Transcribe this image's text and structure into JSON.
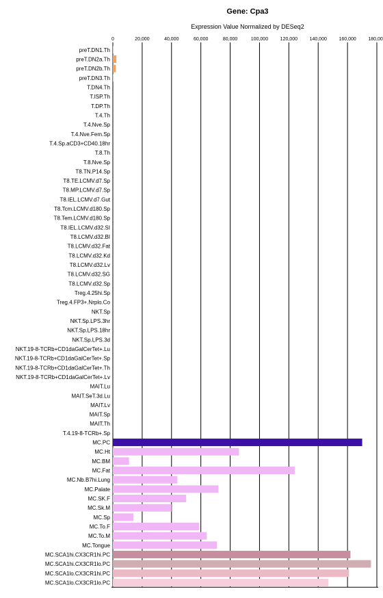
{
  "chart_data": {
    "type": "bar",
    "orientation": "horizontal",
    "title": "Gene: Cpa3",
    "subtitle": "Expression Value Normalized by DESeq2",
    "xlabel": "",
    "ylabel": "",
    "xlim": [
      0,
      180000
    ],
    "xticks": [
      0,
      20000,
      40000,
      60000,
      80000,
      100000,
      120000,
      140000,
      160000,
      180000
    ],
    "xtick_labels": [
      "0",
      "20,000",
      "40,000",
      "60,000",
      "80,000",
      "100,000",
      "120,000",
      "140,000",
      "160,000",
      "180,000"
    ],
    "grid": "vertical",
    "categories": [
      "preT.DN1.Th",
      "preT.DN2a.Th",
      "preT.DN2b.Th",
      "preT.DN3.Th",
      "T.DN4.Th",
      "T.ISP.Th",
      "T.DP.Th",
      "T.4.Th",
      "T.4.Nve.Sp",
      "T.4.Nve.Fem.Sp",
      "T.4.Sp.aCD3+CD40.18hr",
      "T.8.Th",
      "T.8.Nve.Sp",
      "T8.TN.P14.Sp",
      "T8.TE.LCMV.d7.Sp",
      "T8.MP.LCMV.d7.Sp",
      "T8.IEL.LCMV.d7.Gut",
      "T8.Tcm.LCMV.d180.Sp",
      "T8.Tem.LCMV.d180.Sp",
      "T8.IEL.LCMV.d32.SI",
      "T8.LCMV.d32.BI",
      "T8.LCMV.d32.Fat",
      "T8.LCMV.d32.Kd",
      "T8.LCMV.d32.Lv",
      "T8.LCMV.d32.SG",
      "T8.LCMV.d32.Sp",
      "Treg.4.25hi.Sp",
      "Treg.4.FP3+.Nrplo.Co",
      "NKT.Sp",
      "NKT.Sp.LPS.3hr",
      "NKT.Sp.LPS.18hr",
      "NKT.Sp.LPS.3d",
      "NKT.19-8-TCRb+CD1daGalCerTet+.Lu",
      "NKT.19-8-TCRb+CD1daGalCerTet+.Sp",
      "NKT.19-8-TCRb+CD1daGalCerTet+.Th",
      "NKT.19-8-TCRb+CD1daGalCerTet+.Lv",
      "MAIT.Lu",
      "MAIT.SeT.3d.Lu",
      "MAIT.Lv",
      "MAIT.Sp",
      "MAIT.Th",
      "T.4.19-8-TCRb+.Sp",
      "MC.PC",
      "MC.Ht",
      "MC.BM",
      "MC.Fat",
      "MC.Nb.B7hi.Lung",
      "MC.Palate",
      "MC.SK.F",
      "MC.Sk.M",
      "MC.Sp",
      "MC.To.F",
      "MC.To.M",
      "MC.Tongue",
      "MC.SCA1hi.CX3CR1hi.PC",
      "MC.SCA1hi.CX3CR1lo.PC",
      "MC.SCA1lo.CX3CR1hi.PC",
      "MC.SCA1lo.CX3CR1lo.PC"
    ],
    "values": [
      300,
      2400,
      2000,
      300,
      0,
      0,
      0,
      0,
      0,
      0,
      0,
      0,
      0,
      0,
      0,
      0,
      0,
      0,
      0,
      0,
      0,
      0,
      0,
      0,
      0,
      0,
      0,
      0,
      0,
      0,
      0,
      0,
      0,
      0,
      0,
      0,
      0,
      0,
      0,
      0,
      0,
      0,
      170000,
      86000,
      11000,
      124000,
      44000,
      72000,
      50000,
      40000,
      14000,
      59000,
      64000,
      71000,
      162000,
      176000,
      161000,
      147000
    ],
    "colors": [
      "#f4a460",
      "#f4a460",
      "#f4a460",
      "#f4a460",
      "#f4a460",
      "#f4a460",
      "#f4a460",
      "#f4a460",
      "#f4a460",
      "#f4a460",
      "#f4a460",
      "#f4a460",
      "#f4a460",
      "#f4a460",
      "#f4a460",
      "#f4a460",
      "#f4a460",
      "#f4a460",
      "#f4a460",
      "#f4a460",
      "#f4a460",
      "#f4a460",
      "#f4a460",
      "#f4a460",
      "#f4a460",
      "#f4a460",
      "#f4a460",
      "#f4a460",
      "#f4a460",
      "#f4a460",
      "#f4a460",
      "#f4a460",
      "#f4a460",
      "#f4a460",
      "#f4a460",
      "#f4a460",
      "#f4a460",
      "#f4a460",
      "#f4a460",
      "#f4a460",
      "#f4a460",
      "#f4a460",
      "#3c0fa6",
      "#f0b6f5",
      "#f0b6f5",
      "#f0b6f5",
      "#f0b6f5",
      "#f0b6f5",
      "#f0b6f5",
      "#f0b6f5",
      "#f0b6f5",
      "#f0b6f5",
      "#f0b6f5",
      "#f0b6f5",
      "#c68e9e",
      "#cfadb2",
      "#ecb9c7",
      "#f6cfdd"
    ]
  }
}
